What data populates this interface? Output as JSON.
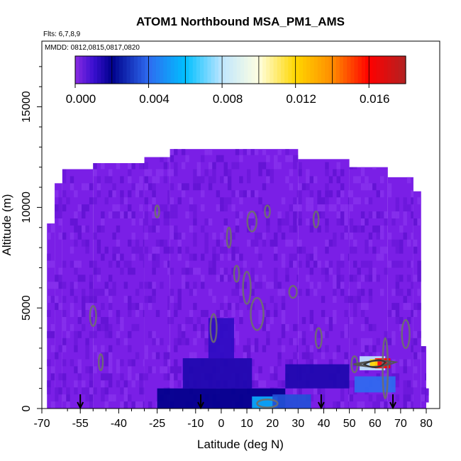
{
  "chart_data": {
    "type": "heatmap",
    "title": "ATOM1 Northbound MSA_PM1_AMS",
    "subtitle_flights": "Flts: 6,7,8,9",
    "subtitle_dates": "MMDD: 0812,0815,0817,0820",
    "xlabel": "Latitude (deg N)",
    "ylabel": "Altitude (m)",
    "xlim": [
      -70,
      80
    ],
    "ylim": [
      0,
      17500
    ],
    "x_ticks": [
      -70,
      -55,
      -40,
      -25,
      -10,
      0,
      10,
      20,
      30,
      40,
      50,
      60,
      70,
      80
    ],
    "x_tick_labels": [
      "-70",
      "-55",
      "-40",
      "-25",
      "-10",
      "0",
      "10",
      "20",
      "30",
      "40",
      "50",
      "60",
      "70",
      "80"
    ],
    "x_minor_ticks": [
      -60,
      -50,
      -45,
      -35,
      -30,
      -20,
      -15,
      -5,
      5,
      15,
      25,
      35,
      45,
      55,
      65,
      75
    ],
    "y_ticks": [
      0,
      5000,
      10000,
      15000
    ],
    "y_tick_labels": [
      "0",
      "5000",
      "10000",
      "15000"
    ],
    "colorbar": {
      "range": [
        0,
        0.018
      ],
      "tick_values": [
        0,
        0.004,
        0.008,
        0.012,
        0.016
      ],
      "tick_labels": [
        "0.000",
        "0.004",
        "0.008",
        "0.012",
        "0.016"
      ],
      "stops": [
        {
          "v": 0.0,
          "color": "#8a2be2"
        },
        {
          "v": 0.001,
          "color": "#3a0fd0"
        },
        {
          "v": 0.002,
          "color": "#00008b"
        },
        {
          "v": 0.004,
          "color": "#2e6bf0"
        },
        {
          "v": 0.006,
          "color": "#00bfff"
        },
        {
          "v": 0.008,
          "color": "#bfe6ff"
        },
        {
          "v": 0.01,
          "color": "#ffffe0"
        },
        {
          "v": 0.012,
          "color": "#ffd700"
        },
        {
          "v": 0.014,
          "color": "#ff8c00"
        },
        {
          "v": 0.016,
          "color": "#ff0000"
        },
        {
          "v": 0.018,
          "color": "#b22222"
        }
      ]
    },
    "profile_latitudes": [
      -55,
      -8,
      39,
      67
    ],
    "coverage": [
      {
        "lat": [
          -68,
          -65
        ],
        "alt": [
          0,
          9200
        ]
      },
      {
        "lat": [
          -65,
          -62
        ],
        "alt": [
          0,
          11200
        ]
      },
      {
        "lat": [
          -62,
          -50
        ],
        "alt": [
          0,
          11900
        ]
      },
      {
        "lat": [
          -50,
          -30
        ],
        "alt": [
          0,
          12200
        ]
      },
      {
        "lat": [
          -30,
          -20
        ],
        "alt": [
          0,
          12500
        ]
      },
      {
        "lat": [
          -20,
          30
        ],
        "alt": [
          0,
          12900
        ]
      },
      {
        "lat": [
          30,
          50
        ],
        "alt": [
          0,
          12400
        ]
      },
      {
        "lat": [
          50,
          65
        ],
        "alt": [
          0,
          12000
        ]
      },
      {
        "lat": [
          65,
          75
        ],
        "alt": [
          0,
          11500
        ]
      },
      {
        "lat": [
          75,
          78
        ],
        "alt": [
          0,
          10800
        ]
      },
      {
        "lat": [
          78,
          80
        ],
        "alt": [
          0,
          3100
        ]
      },
      {
        "lat": [
          80,
          81
        ],
        "alt": [
          300,
          1000
        ]
      }
    ],
    "anomalies": [
      {
        "lat": [
          -25,
          25
        ],
        "alt": [
          0,
          1000
        ],
        "value": 0.002
      },
      {
        "lat": [
          -15,
          12
        ],
        "alt": [
          1000,
          2500
        ],
        "value": 0.0015
      },
      {
        "lat": [
          -5,
          5
        ],
        "alt": [
          2500,
          4500
        ],
        "value": 0.0012
      },
      {
        "lat": [
          25,
          50
        ],
        "alt": [
          1000,
          2200
        ],
        "value": 0.0015
      },
      {
        "lat": [
          12,
          22
        ],
        "alt": [
          0,
          600
        ],
        "value": 0.0055
      },
      {
        "lat": [
          20,
          35
        ],
        "alt": [
          0,
          700
        ],
        "value": 0.0035
      },
      {
        "lat": [
          52,
          68
        ],
        "alt": [
          800,
          1600
        ],
        "value": 0.004
      },
      {
        "lat": [
          54,
          64
        ],
        "alt": [
          1900,
          2600
        ],
        "value": 0.008
      },
      {
        "lat": [
          60,
          66
        ],
        "alt": [
          2000,
          2500
        ],
        "value": 0.016
      },
      {
        "lat": [
          58,
          61
        ],
        "alt": [
          2100,
          2450
        ],
        "value": 0.012
      }
    ]
  }
}
